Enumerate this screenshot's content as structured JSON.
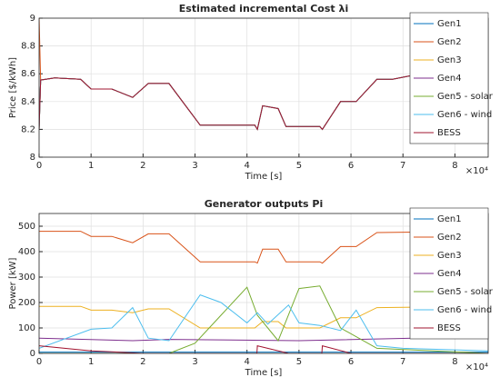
{
  "chart_data": [
    {
      "type": "line",
      "title": "Estimated incremental Cost λi",
      "xlabel": "Time [s]",
      "ylabel": "Price [$/kWh]",
      "x_exponent_label": "×10⁴",
      "xlim": [
        0,
        86400
      ],
      "ylim": [
        8,
        9
      ],
      "xticks": [
        {
          "value": 0,
          "label": "0"
        },
        {
          "value": 10000,
          "label": "1"
        },
        {
          "value": 20000,
          "label": "2"
        },
        {
          "value": 30000,
          "label": "3"
        },
        {
          "value": 40000,
          "label": "4"
        },
        {
          "value": 50000,
          "label": "5"
        },
        {
          "value": 60000,
          "label": "6"
        },
        {
          "value": 70000,
          "label": "7"
        },
        {
          "value": 80000,
          "label": "8"
        }
      ],
      "yticks": [
        8,
        8.2,
        8.4,
        8.6,
        8.8,
        9
      ],
      "grid": true,
      "legend": "upper right",
      "x": [
        0,
        300,
        3000,
        8000,
        10000,
        14000,
        18000,
        21000,
        25000,
        31000,
        41500,
        42000,
        43000,
        46000,
        47500,
        54000,
        54500,
        58000,
        61000,
        65000,
        68000,
        72000,
        86400
      ],
      "series": [
        {
          "name": "Gen1",
          "color": "#0072bd",
          "values": [
            8.2,
            8.555,
            8.57,
            8.56,
            8.49,
            8.49,
            8.43,
            8.53,
            8.53,
            8.23,
            8.23,
            8.2,
            8.37,
            8.35,
            8.22,
            8.22,
            8.2,
            8.4,
            8.4,
            8.56,
            8.56,
            8.59,
            8.62
          ]
        },
        {
          "name": "Gen2",
          "color": "#d95319",
          "values": [
            9,
            8.555,
            8.57,
            8.56,
            8.49,
            8.49,
            8.43,
            8.53,
            8.53,
            8.23,
            8.23,
            8.2,
            8.37,
            8.35,
            8.22,
            8.22,
            8.2,
            8.4,
            8.4,
            8.56,
            8.56,
            8.59,
            8.62
          ]
        },
        {
          "name": "Gen3",
          "color": "#edb120",
          "values": [
            8.2,
            8.555,
            8.57,
            8.56,
            8.49,
            8.49,
            8.43,
            8.53,
            8.53,
            8.23,
            8.23,
            8.2,
            8.37,
            8.35,
            8.22,
            8.22,
            8.2,
            8.4,
            8.4,
            8.56,
            8.56,
            8.59,
            8.62
          ]
        },
        {
          "name": "Gen4",
          "color": "#7e2f8e",
          "values": [
            8.2,
            8.555,
            8.57,
            8.56,
            8.49,
            8.49,
            8.43,
            8.53,
            8.53,
            8.23,
            8.23,
            8.2,
            8.37,
            8.35,
            8.22,
            8.22,
            8.2,
            8.4,
            8.4,
            8.56,
            8.56,
            8.59,
            8.62
          ]
        },
        {
          "name": "Gen5 - solar",
          "color": "#77ac30",
          "values": [
            8.2,
            8.555,
            8.57,
            8.56,
            8.49,
            8.49,
            8.43,
            8.53,
            8.53,
            8.23,
            8.23,
            8.2,
            8.37,
            8.35,
            8.22,
            8.22,
            8.2,
            8.4,
            8.4,
            8.56,
            8.56,
            8.59,
            8.62
          ]
        },
        {
          "name": "Gen6 - wind",
          "color": "#4dbeee",
          "values": [
            8.2,
            8.555,
            8.57,
            8.56,
            8.49,
            8.49,
            8.43,
            8.53,
            8.53,
            8.23,
            8.23,
            8.2,
            8.37,
            8.35,
            8.22,
            8.22,
            8.2,
            8.4,
            8.4,
            8.56,
            8.56,
            8.59,
            8.62
          ]
        },
        {
          "name": "BESS",
          "color": "#a2142f",
          "values": [
            8.2,
            8.555,
            8.57,
            8.56,
            8.49,
            8.49,
            8.43,
            8.53,
            8.53,
            8.23,
            8.23,
            8.2,
            8.37,
            8.35,
            8.22,
            8.22,
            8.2,
            8.4,
            8.4,
            8.56,
            8.56,
            8.59,
            8.62
          ]
        }
      ]
    },
    {
      "type": "line",
      "title": "Generator outputs Pi",
      "xlabel": "Time [s]",
      "ylabel": "Power [kW]",
      "x_exponent_label": "×10⁴",
      "xlim": [
        0,
        86400
      ],
      "ylim": [
        0,
        550
      ],
      "xticks": [
        {
          "value": 0,
          "label": "0"
        },
        {
          "value": 10000,
          "label": "1"
        },
        {
          "value": 20000,
          "label": "2"
        },
        {
          "value": 30000,
          "label": "3"
        },
        {
          "value": 40000,
          "label": "4"
        },
        {
          "value": 50000,
          "label": "5"
        },
        {
          "value": 60000,
          "label": "6"
        },
        {
          "value": 70000,
          "label": "7"
        },
        {
          "value": 80000,
          "label": "8"
        }
      ],
      "yticks": [
        0,
        100,
        200,
        300,
        400,
        500
      ],
      "grid": true,
      "legend": "upper right",
      "series": [
        {
          "name": "Gen1",
          "color": "#0072bd",
          "x": [
            0,
            86400
          ],
          "values": [
            5,
            5
          ]
        },
        {
          "name": "Gen2",
          "color": "#d95319",
          "x": [
            0,
            8000,
            10000,
            14000,
            18000,
            21000,
            25000,
            31000,
            41500,
            42000,
            43000,
            46000,
            47500,
            54000,
            54500,
            58000,
            61000,
            65000,
            86400
          ],
          "values": [
            480,
            480,
            460,
            460,
            435,
            470,
            470,
            360,
            360,
            355,
            410,
            410,
            360,
            360,
            355,
            420,
            420,
            475,
            480
          ]
        },
        {
          "name": "Gen3",
          "color": "#edb120",
          "x": [
            0,
            8000,
            10000,
            14000,
            18000,
            21000,
            25000,
            31000,
            41500,
            43000,
            46000,
            47500,
            54000,
            58000,
            61000,
            65000,
            86400
          ],
          "values": [
            185,
            185,
            170,
            170,
            160,
            175,
            175,
            100,
            100,
            125,
            125,
            100,
            100,
            140,
            140,
            180,
            185
          ]
        },
        {
          "name": "Gen4",
          "color": "#7e2f8e",
          "x": [
            0,
            18000,
            25000,
            50000,
            72000,
            86400
          ],
          "values": [
            60,
            50,
            55,
            50,
            60,
            65
          ]
        },
        {
          "name": "Gen5 - solar",
          "color": "#77ac30",
          "x": [
            0,
            25000,
            30000,
            35000,
            40000,
            42000,
            46000,
            50000,
            54000,
            58000,
            65000,
            86400
          ],
          "values": [
            0,
            0,
            40,
            150,
            260,
            150,
            50,
            255,
            265,
            100,
            20,
            0
          ]
        },
        {
          "name": "Gen6 - wind",
          "color": "#4dbeee",
          "x": [
            0,
            10000,
            14000,
            18000,
            21000,
            25000,
            31000,
            35000,
            40000,
            42000,
            44000,
            48000,
            50000,
            54000,
            58000,
            61000,
            65000,
            70000,
            86400
          ],
          "values": [
            20,
            95,
            100,
            180,
            60,
            50,
            230,
            200,
            120,
            160,
            115,
            190,
            120,
            110,
            90,
            170,
            30,
            20,
            10
          ]
        },
        {
          "name": "BESS",
          "color": "#a2142f",
          "x": [
            0,
            10000,
            20000,
            41900,
            42000,
            48000,
            54400,
            54500,
            60000,
            86400
          ],
          "values": [
            30,
            10,
            0,
            0,
            30,
            0,
            0,
            30,
            0,
            0
          ]
        }
      ]
    }
  ]
}
